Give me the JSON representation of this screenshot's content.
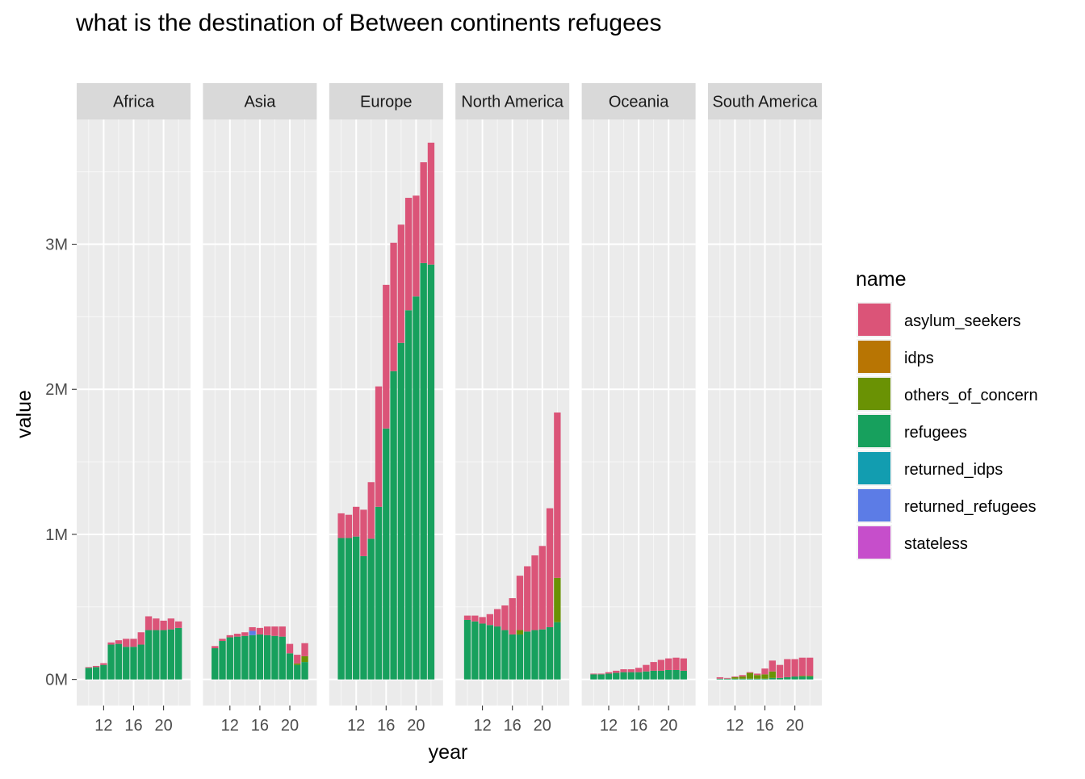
{
  "chart_data": {
    "type": "bar",
    "stacked": true,
    "faceted": true,
    "title": "what is the destination of Between continents refugees",
    "xlabel": "year",
    "ylabel": "value",
    "x": [
      10,
      11,
      12,
      13,
      14,
      15,
      16,
      17,
      18,
      19,
      20,
      21,
      22
    ],
    "x_ticks": [
      12,
      16,
      20
    ],
    "x_tick_labels": [
      "12",
      "16",
      "20"
    ],
    "xlim": [
      8.4,
      23.6
    ],
    "ylim": [
      -180000,
      3860000
    ],
    "y_ticks": [
      0,
      1000000,
      2000000,
      3000000
    ],
    "y_tick_labels": [
      "0M",
      "1M",
      "2M",
      "3M"
    ],
    "grid": true,
    "legend": {
      "title": "name",
      "position": "right",
      "items": [
        "asylum_seekers",
        "idps",
        "others_of_concern",
        "refugees",
        "returned_idps",
        "returned_refugees",
        "stateless"
      ]
    },
    "colors": {
      "asylum_seekers": "#DB5478",
      "idps": "#B87503",
      "others_of_concern": "#6A9204",
      "refugees": "#17A05D",
      "returned_idps": "#129DB0",
      "returned_refugees": "#5C7CE6",
      "stateless": "#C64ECB",
      "panel_bg": "#EBEBEB",
      "strip_bg": "#D9D9D9",
      "grid": "#FFFFFF"
    },
    "stack_order": [
      "refugees",
      "others_of_concern",
      "returned_refugees",
      "idps",
      "returned_idps",
      "stateless",
      "asylum_seekers"
    ],
    "facets": [
      {
        "name": "Africa",
        "series": {
          "refugees": [
            80000,
            85000,
            100000,
            240000,
            245000,
            225000,
            225000,
            240000,
            340000,
            340000,
            340000,
            345000,
            355000
          ],
          "others_of_concern": [
            0,
            0,
            0,
            0,
            0,
            0,
            0,
            0,
            0,
            0,
            0,
            0,
            0
          ],
          "returned_refugees": [
            0,
            0,
            0,
            0,
            0,
            0,
            0,
            0,
            0,
            0,
            0,
            0,
            0
          ],
          "idps": [
            0,
            0,
            0,
            0,
            0,
            0,
            0,
            0,
            0,
            0,
            0,
            0,
            0
          ],
          "returned_idps": [
            0,
            0,
            0,
            0,
            0,
            0,
            0,
            0,
            0,
            0,
            0,
            0,
            0
          ],
          "stateless": [
            0,
            0,
            0,
            0,
            0,
            0,
            0,
            0,
            0,
            0,
            0,
            0,
            0
          ],
          "asylum_seekers": [
            5000,
            8000,
            12000,
            15000,
            25000,
            55000,
            55000,
            85000,
            95000,
            80000,
            65000,
            75000,
            45000
          ]
        }
      },
      {
        "name": "Asia",
        "series": {
          "refugees": [
            215000,
            265000,
            290000,
            295000,
            300000,
            305000,
            310000,
            305000,
            300000,
            295000,
            180000,
            100000,
            120000
          ],
          "others_of_concern": [
            0,
            0,
            0,
            0,
            0,
            0,
            0,
            0,
            0,
            0,
            0,
            10000,
            40000
          ],
          "returned_refugees": [
            0,
            0,
            0,
            0,
            0,
            30000,
            0,
            0,
            0,
            0,
            0,
            0,
            0
          ],
          "idps": [
            0,
            0,
            0,
            0,
            0,
            0,
            0,
            0,
            0,
            0,
            0,
            0,
            0
          ],
          "returned_idps": [
            0,
            0,
            0,
            0,
            0,
            0,
            0,
            0,
            0,
            0,
            0,
            0,
            0
          ],
          "stateless": [
            0,
            0,
            0,
            0,
            0,
            0,
            0,
            0,
            0,
            0,
            0,
            0,
            0
          ],
          "asylum_seekers": [
            15000,
            15000,
            15000,
            20000,
            25000,
            25000,
            45000,
            60000,
            65000,
            70000,
            65000,
            60000,
            90000
          ]
        }
      },
      {
        "name": "Europe",
        "series": {
          "refugees": [
            975000,
            975000,
            985000,
            850000,
            970000,
            1190000,
            1730000,
            2125000,
            2320000,
            2545000,
            2640000,
            2870000,
            2860000
          ],
          "others_of_concern": [
            0,
            0,
            0,
            0,
            0,
            0,
            0,
            0,
            0,
            0,
            0,
            0,
            0
          ],
          "returned_refugees": [
            0,
            0,
            0,
            0,
            0,
            0,
            0,
            0,
            0,
            0,
            0,
            0,
            0
          ],
          "idps": [
            0,
            0,
            0,
            0,
            0,
            0,
            0,
            0,
            0,
            0,
            0,
            0,
            0
          ],
          "returned_idps": [
            0,
            0,
            0,
            0,
            0,
            0,
            0,
            0,
            0,
            0,
            0,
            0,
            0
          ],
          "stateless": [
            0,
            0,
            0,
            0,
            0,
            0,
            0,
            0,
            0,
            0,
            0,
            0,
            0
          ],
          "asylum_seekers": [
            170000,
            160000,
            205000,
            320000,
            390000,
            830000,
            990000,
            885000,
            815000,
            775000,
            695000,
            695000,
            840000
          ]
        }
      },
      {
        "name": "North America",
        "series": {
          "refugees": [
            410000,
            400000,
            385000,
            375000,
            365000,
            340000,
            310000,
            310000,
            330000,
            340000,
            345000,
            360000,
            395000
          ],
          "others_of_concern": [
            0,
            0,
            0,
            0,
            0,
            0,
            0,
            30000,
            0,
            0,
            0,
            0,
            305000
          ],
          "returned_refugees": [
            0,
            0,
            0,
            0,
            0,
            0,
            0,
            0,
            0,
            0,
            0,
            0,
            0
          ],
          "idps": [
            0,
            0,
            0,
            0,
            0,
            0,
            0,
            0,
            0,
            0,
            0,
            0,
            0
          ],
          "returned_idps": [
            0,
            0,
            0,
            0,
            0,
            0,
            0,
            0,
            0,
            0,
            0,
            0,
            0
          ],
          "stateless": [
            0,
            0,
            0,
            0,
            0,
            0,
            0,
            0,
            0,
            0,
            0,
            0,
            0
          ],
          "asylum_seekers": [
            30000,
            40000,
            45000,
            75000,
            120000,
            170000,
            250000,
            375000,
            450000,
            515000,
            575000,
            820000,
            1140000
          ]
        }
      },
      {
        "name": "Oceania",
        "series": {
          "refugees": [
            35000,
            35000,
            40000,
            45000,
            50000,
            50000,
            50000,
            55000,
            60000,
            60000,
            65000,
            65000,
            60000
          ],
          "others_of_concern": [
            0,
            0,
            0,
            0,
            0,
            0,
            0,
            0,
            0,
            0,
            0,
            0,
            0
          ],
          "returned_refugees": [
            0,
            0,
            0,
            0,
            0,
            0,
            0,
            0,
            0,
            0,
            0,
            0,
            0
          ],
          "idps": [
            0,
            0,
            0,
            0,
            0,
            0,
            0,
            0,
            0,
            0,
            0,
            0,
            0
          ],
          "returned_idps": [
            0,
            0,
            0,
            0,
            0,
            0,
            0,
            0,
            0,
            0,
            0,
            0,
            0
          ],
          "stateless": [
            0,
            0,
            0,
            0,
            0,
            0,
            0,
            0,
            0,
            0,
            0,
            0,
            0
          ],
          "asylum_seekers": [
            5000,
            5000,
            10000,
            15000,
            20000,
            20000,
            30000,
            45000,
            60000,
            75000,
            80000,
            85000,
            85000
          ]
        }
      },
      {
        "name": "South America",
        "series": {
          "refugees": [
            5000,
            5000,
            5000,
            5000,
            5000,
            5000,
            5000,
            10000,
            10000,
            15000,
            20000,
            20000,
            20000
          ],
          "others_of_concern": [
            0,
            0,
            10000,
            15000,
            40000,
            25000,
            30000,
            45000,
            0,
            0,
            0,
            5000,
            5000
          ],
          "returned_refugees": [
            0,
            0,
            0,
            0,
            0,
            0,
            0,
            0,
            0,
            0,
            0,
            0,
            0
          ],
          "idps": [
            0,
            0,
            0,
            0,
            0,
            0,
            0,
            0,
            0,
            0,
            0,
            0,
            0
          ],
          "returned_idps": [
            0,
            0,
            0,
            0,
            0,
            0,
            0,
            0,
            0,
            0,
            0,
            0,
            0
          ],
          "stateless": [
            0,
            0,
            0,
            0,
            0,
            0,
            0,
            0,
            0,
            0,
            0,
            0,
            0
          ],
          "asylum_seekers": [
            10000,
            5000,
            5000,
            10000,
            5000,
            10000,
            40000,
            75000,
            90000,
            125000,
            120000,
            125000,
            125000
          ]
        }
      }
    ]
  }
}
